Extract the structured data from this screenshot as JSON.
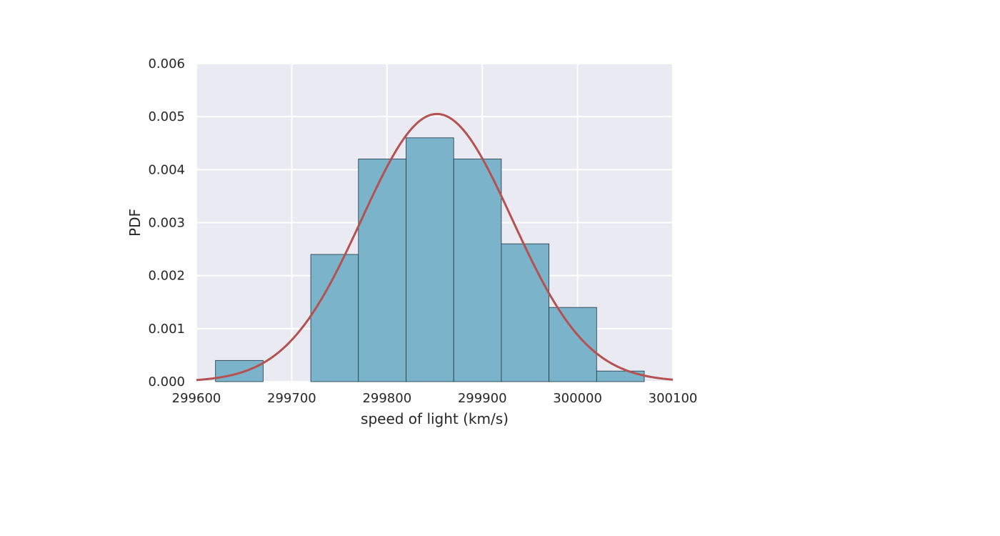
{
  "chart_data": {
    "type": "bar",
    "title": "",
    "xlabel": "speed of light (km/s)",
    "ylabel": "PDF",
    "xlim": [
      299600,
      300100
    ],
    "ylim": [
      0,
      0.006
    ],
    "xticks": [
      299600,
      299700,
      299800,
      299900,
      300000,
      300100
    ],
    "xtick_labels": [
      "299600",
      "299700",
      "299800",
      "299900",
      "300000",
      "300100"
    ],
    "yticks": [
      0,
      0.001,
      0.002,
      0.003,
      0.004,
      0.005,
      0.006
    ],
    "ytick_labels": [
      "0.000",
      "0.001",
      "0.002",
      "0.003",
      "0.004",
      "0.005",
      "0.006"
    ],
    "grid": true,
    "histogram": {
      "bin_edges": [
        299620,
        299670,
        299720,
        299770,
        299820,
        299870,
        299920,
        299970,
        300020,
        300070
      ],
      "values": [
        0.0004,
        0,
        0.0024,
        0.0042,
        0.0046,
        0.0042,
        0.0026,
        0.0014,
        0.0002
      ],
      "color": "#7ab3ca",
      "edgecolor": "#1f3440"
    },
    "normal_curve": {
      "mean": 299852.4,
      "std": 79.0,
      "color": "#b55150"
    },
    "background_color": "#eaeaf2"
  }
}
